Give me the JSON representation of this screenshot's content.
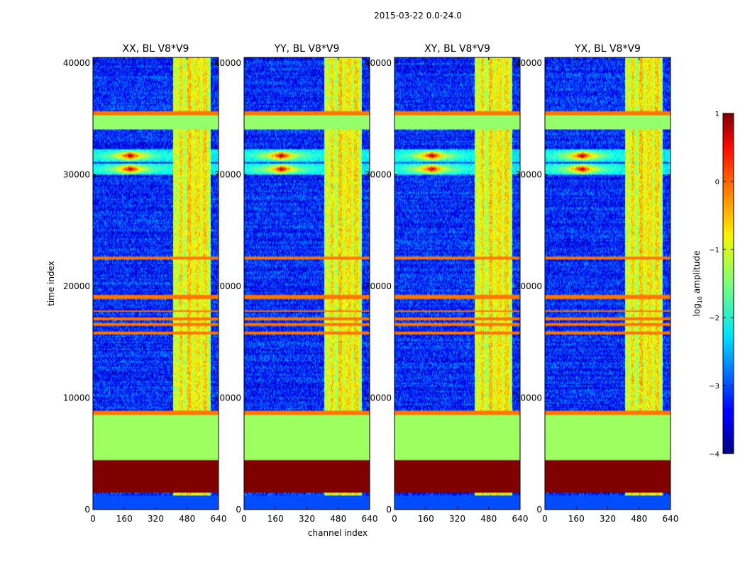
{
  "suptitle": "2015-03-22 0.0-24.0",
  "chart_data": {
    "type": "heatmap",
    "panels": [
      {
        "title": "XX, BL V8*V9",
        "variant": 0
      },
      {
        "title": "YY, BL V8*V9",
        "variant": 1
      },
      {
        "title": "XY, BL V8*V9",
        "variant": 2
      },
      {
        "title": "YX, BL V8*V9",
        "variant": 3
      }
    ],
    "xlabel": "channel index",
    "ylabel": "time index",
    "xlim": [
      0,
      640
    ],
    "ylim": [
      0,
      40500
    ],
    "xticks": [
      0,
      160,
      320,
      480,
      640
    ],
    "yticks": [
      0,
      10000,
      20000,
      30000,
      40000
    ],
    "colorbar": {
      "label_pre": "log",
      "label_sub": "10",
      "label_post": " amplitude",
      "range": [
        -4,
        1
      ],
      "ticks": [
        1,
        0,
        -1,
        -2,
        -3,
        -4
      ],
      "tick_labels": [
        "1",
        "0",
        "−1",
        "−2",
        "−3",
        "−4"
      ]
    },
    "colormap": "jet",
    "features": {
      "background_log_amp": -3.2,
      "rfi_channel_bands": [
        [
          408,
          440,
          -1.1
        ],
        [
          440,
          455,
          -0.7
        ],
        [
          455,
          480,
          -1.2
        ],
        [
          480,
          500,
          -0.6
        ],
        [
          500,
          520,
          -1.0
        ],
        [
          520,
          545,
          -0.8
        ],
        [
          545,
          562,
          -1.1
        ],
        [
          562,
          583,
          -0.7
        ],
        [
          583,
          600,
          -1.2
        ]
      ],
      "flagged_time_rows": [
        {
          "start": 0,
          "end": 1300,
          "value": -3.0
        },
        {
          "start": 1500,
          "end": 4400,
          "value": 1.0
        },
        {
          "start": 4400,
          "end": 8500,
          "value": -1.35
        },
        {
          "start": 8500,
          "end": 8800,
          "value": -0.2
        },
        {
          "start": 15700,
          "end": 15900,
          "value": -0.2
        },
        {
          "start": 16400,
          "end": 16700,
          "value": -0.2
        },
        {
          "start": 16900,
          "end": 17200,
          "value": -0.2
        },
        {
          "start": 17700,
          "end": 17900,
          "value": -0.2
        },
        {
          "start": 18900,
          "end": 19300,
          "value": -0.2
        },
        {
          "start": 22400,
          "end": 22700,
          "value": -0.2
        },
        {
          "start": 34000,
          "end": 35300,
          "value": -1.4
        },
        {
          "start": 35300,
          "end": 35700,
          "value": -0.2
        }
      ],
      "rfi_event_times": [
        30500,
        31700
      ],
      "rfi_event_channel": 190
    }
  }
}
